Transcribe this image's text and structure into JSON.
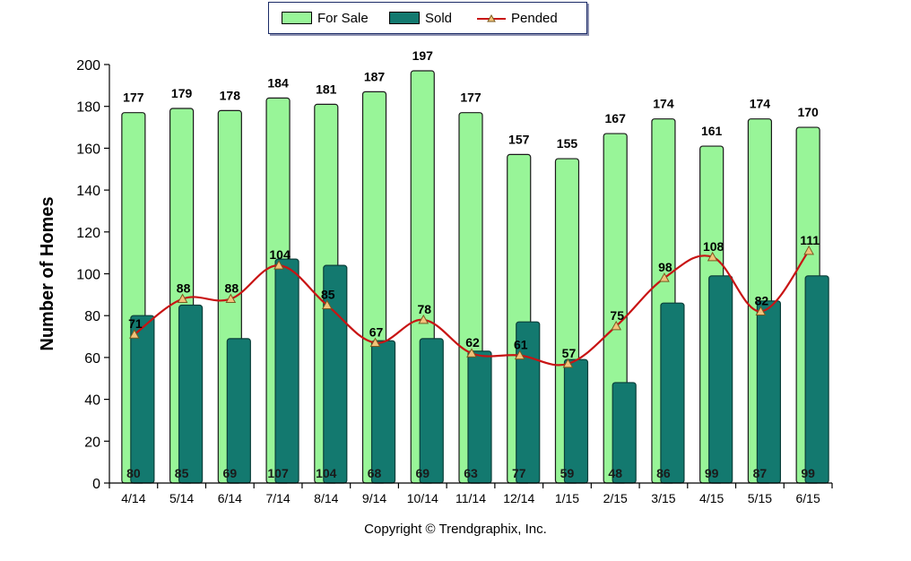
{
  "chart_data": {
    "type": "bar",
    "categories": [
      "4/14",
      "5/14",
      "6/14",
      "7/14",
      "8/14",
      "9/14",
      "10/14",
      "11/14",
      "12/14",
      "1/15",
      "2/15",
      "3/15",
      "4/15",
      "5/15",
      "6/15"
    ],
    "series": [
      {
        "name": "For Sale",
        "type": "bar",
        "color": "#98f598",
        "values": [
          177,
          179,
          178,
          184,
          181,
          187,
          197,
          177,
          157,
          155,
          167,
          174,
          161,
          174,
          170
        ]
      },
      {
        "name": "Sold",
        "type": "bar",
        "color": "#13796f",
        "values": [
          80,
          85,
          69,
          107,
          104,
          68,
          69,
          63,
          77,
          59,
          48,
          86,
          99,
          87,
          99
        ]
      },
      {
        "name": "Pended",
        "type": "line",
        "color": "#c81414",
        "values": [
          71,
          88,
          88,
          104,
          85,
          67,
          78,
          62,
          61,
          57,
          75,
          98,
          108,
          82,
          111
        ]
      }
    ],
    "ylabel": "Number of Homes",
    "xlabel": "",
    "ylim": [
      0,
      200
    ],
    "yticks": [
      0,
      20,
      40,
      60,
      80,
      100,
      120,
      140,
      160,
      180,
      200
    ],
    "legend_position": "top-center",
    "grid": false
  },
  "footer": "Copyright © Trendgraphix, Inc."
}
